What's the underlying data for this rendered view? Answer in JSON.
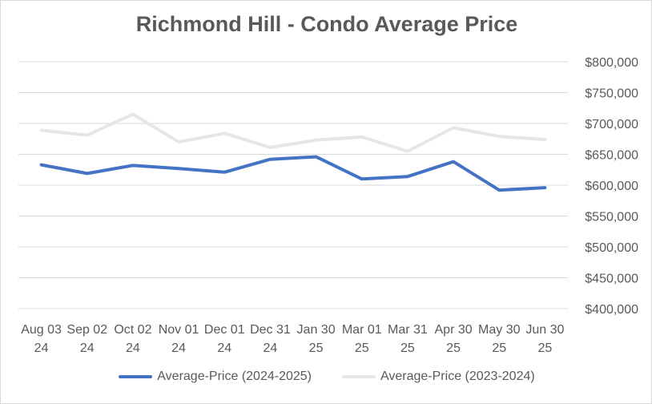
{
  "chart_data": {
    "type": "line",
    "title": "Richmond Hill - Condo Average Price",
    "categories": [
      [
        "Aug 03",
        "24"
      ],
      [
        "Sep 02",
        "24"
      ],
      [
        "Oct 02",
        "24"
      ],
      [
        "Nov 01",
        "24"
      ],
      [
        "Dec 01",
        "24"
      ],
      [
        "Dec 31",
        "24"
      ],
      [
        "Jan 30",
        "25"
      ],
      [
        "Mar 01",
        "25"
      ],
      [
        "Mar 31",
        "25"
      ],
      [
        "Apr 30",
        "25"
      ],
      [
        "May 30",
        "25"
      ],
      [
        "Jun 30",
        "25"
      ]
    ],
    "series": [
      {
        "name": "Average-Price (2024-2025)",
        "color": "#4472c4",
        "values": [
          633000,
          619000,
          632000,
          627000,
          621000,
          642000,
          646000,
          610000,
          614000,
          638000,
          592000,
          596000
        ]
      },
      {
        "name": "Average-Price (2023-2024)",
        "color": "#e7e6e6",
        "values": [
          689000,
          681000,
          715000,
          670000,
          684000,
          661000,
          673000,
          678000,
          655000,
          693000,
          679000,
          674000
        ]
      }
    ],
    "ylim": [
      400000,
      800000
    ],
    "yticks": [
      "$800,000",
      "$750,000",
      "$700,000",
      "$650,000",
      "$600,000",
      "$550,000",
      "$500,000",
      "$450,000",
      "$400,000"
    ],
    "ytick_values": [
      800000,
      750000,
      700000,
      650000,
      600000,
      550000,
      500000,
      450000,
      400000
    ],
    "axis_side": "right",
    "grid": true,
    "legend_position": "bottom",
    "xlabel": "",
    "ylabel": ""
  }
}
